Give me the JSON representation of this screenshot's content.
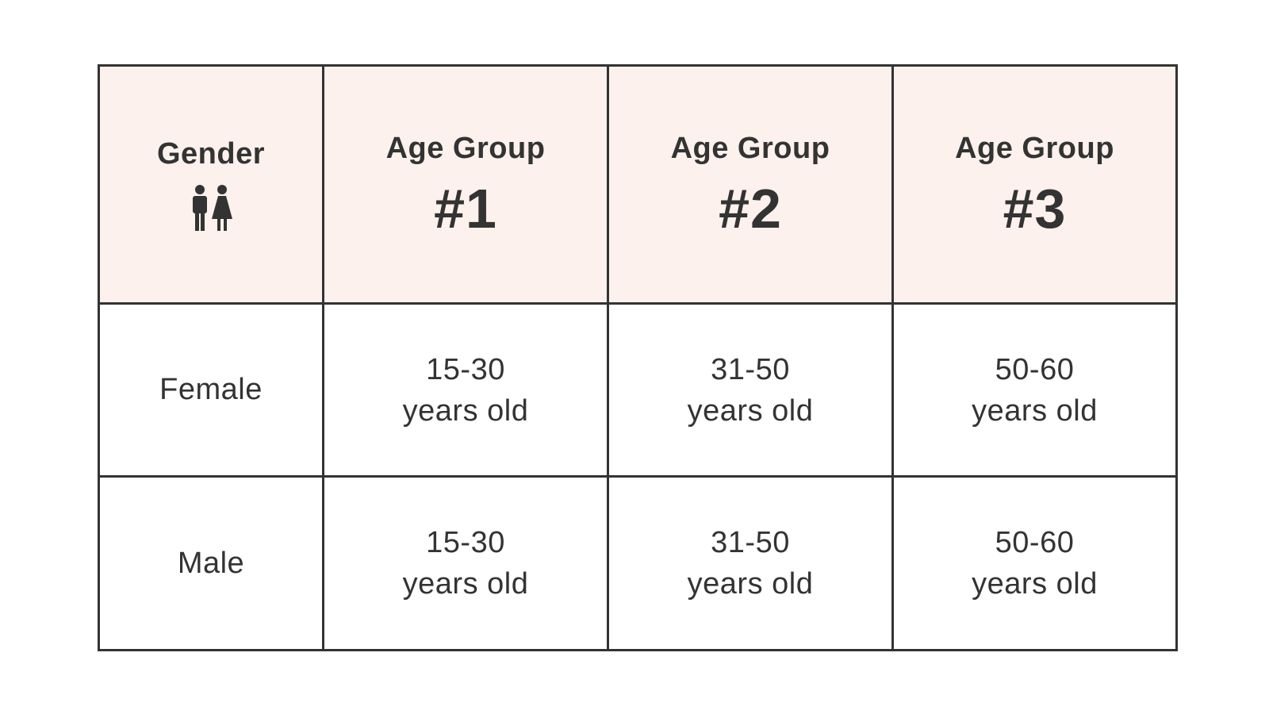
{
  "header": {
    "gender_label": "Gender",
    "gender_icon": "restroom-icon",
    "groups": [
      {
        "title": "Age Group",
        "number": "#1"
      },
      {
        "title": "Age Group",
        "number": "#2"
      },
      {
        "title": "Age Group",
        "number": "#3"
      }
    ]
  },
  "rows": [
    {
      "label": "Female",
      "cells": [
        {
          "range": "15-30",
          "unit": "years old"
        },
        {
          "range": "31-50",
          "unit": "years old"
        },
        {
          "range": "50-60",
          "unit": "years old"
        }
      ]
    },
    {
      "label": "Male",
      "cells": [
        {
          "range": "15-30",
          "unit": "years old"
        },
        {
          "range": "31-50",
          "unit": "years old"
        },
        {
          "range": "50-60",
          "unit": "years old"
        }
      ]
    }
  ],
  "colors": {
    "header_background": "#fcf1ec",
    "border": "#333333",
    "text": "#333333"
  }
}
